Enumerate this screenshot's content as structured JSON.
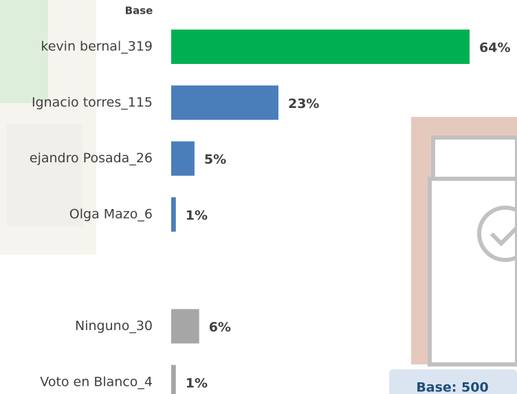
{
  "chart_data": {
    "type": "bar",
    "orientation": "horizontal",
    "header": "Base",
    "categories": [
      "kevin bernal_319",
      "Ignacio torres_115",
      "ejandro Posada_26",
      "Olga Mazo_6",
      null,
      "Ninguno_30",
      "Voto en Blanco_4"
    ],
    "values": [
      64,
      23,
      5,
      1,
      null,
      6,
      1
    ],
    "value_labels": [
      "64%",
      "23%",
      "5%",
      "1%",
      null,
      "6%",
      "1%"
    ],
    "colors": [
      "#00b050",
      "#4a7ebb",
      "#4a7ebb",
      "#4a7ebb",
      null,
      "#a6a6a6",
      "#a6a6a6"
    ],
    "highlight_label_color": "#00b050",
    "note": "Base: 500"
  }
}
